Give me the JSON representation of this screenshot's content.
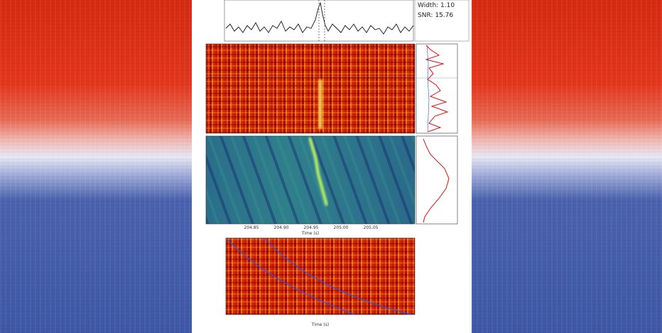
{
  "panel": {
    "info": [
      "Width: 1.10",
      "SNR: 15.76"
    ],
    "time_ticks": [
      "204.85",
      "204.90",
      "204.95",
      "205.00",
      "205.05"
    ],
    "xlabel_middle": "Time (s)",
    "xlabel_bottom": "Time (s)"
  }
}
